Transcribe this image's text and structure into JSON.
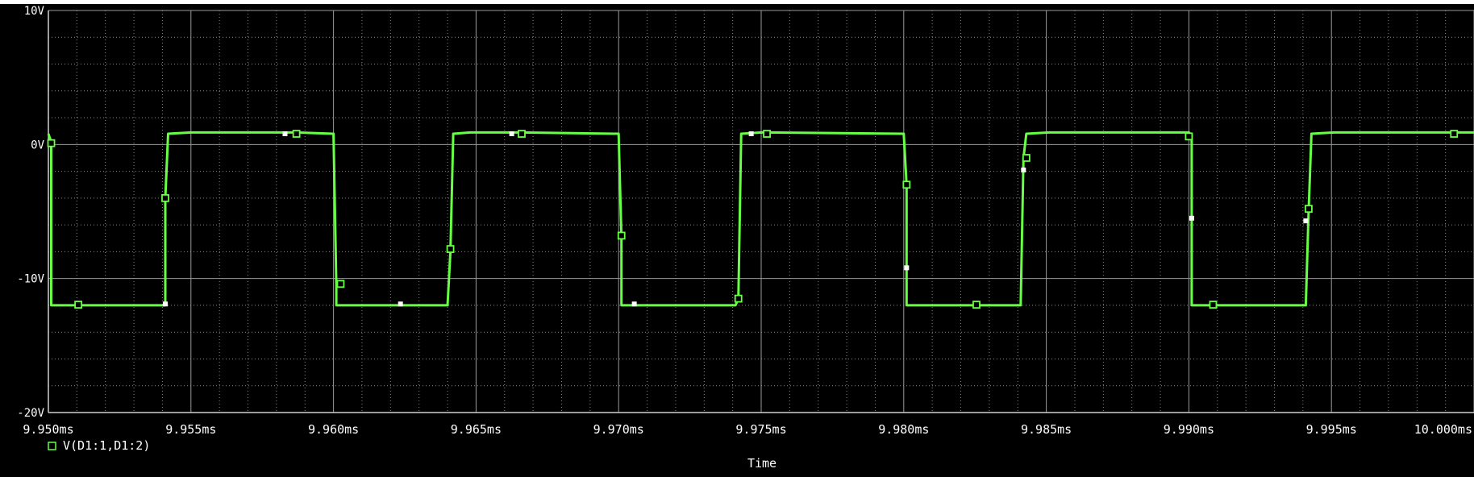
{
  "chart_data": {
    "type": "line",
    "title": "",
    "xlabel": "Time",
    "ylabel": "",
    "xlim": [
      9.95,
      10.0
    ],
    "ylim": [
      -20,
      10
    ],
    "x_ticks": [
      9.95,
      9.955,
      9.96,
      9.965,
      9.97,
      9.975,
      9.98,
      9.985,
      9.99,
      9.995,
      10.0
    ],
    "x_tick_labels": [
      "9.950ms",
      "9.955ms",
      "9.960ms",
      "9.965ms",
      "9.970ms",
      "9.975ms",
      "9.980ms",
      "9.985ms",
      "9.990ms",
      "9.995ms",
      "10.000ms"
    ],
    "y_ticks": [
      10,
      0,
      -10,
      -20
    ],
    "y_tick_labels": [
      "10V",
      "0V",
      "-10V",
      "-20V"
    ],
    "grid": true,
    "legend_position": "bottom-left",
    "series": [
      {
        "name": "V(D1:1,D1:2)",
        "color": "#66ff44",
        "marker": "square",
        "x": [
          9.95,
          9.9501,
          9.9501,
          9.95105,
          9.9541,
          9.9541,
          9.9542,
          9.955,
          9.9587,
          9.96,
          9.9601,
          9.9601,
          9.96025,
          9.964,
          9.9641,
          9.9642,
          9.9648,
          9.9666,
          9.97,
          9.9701,
          9.9701,
          9.97045,
          9.9741,
          9.9742,
          9.9743,
          9.975,
          9.9752,
          9.98,
          9.9801,
          9.9801,
          9.98255,
          9.9841,
          9.9842,
          9.9843,
          9.9851,
          9.99,
          9.9901,
          9.9901,
          9.99085,
          9.9941,
          9.9942,
          9.9943,
          9.9951,
          9.9993,
          10.0
        ],
        "y": [
          0.8,
          0.2,
          -12,
          -12,
          -12,
          -4,
          0.8,
          0.9,
          0.9,
          0.8,
          -10.5,
          -12,
          -12,
          -12,
          -8,
          0.8,
          0.9,
          0.9,
          0.8,
          -7,
          -12,
          -12,
          -12,
          -11.5,
          0.8,
          0.9,
          0.9,
          0.8,
          -3,
          -12,
          -12,
          -12,
          -1,
          0.8,
          0.9,
          0.9,
          0.7,
          -12,
          -12,
          -12,
          -5,
          0.8,
          0.9,
          0.9,
          0.9
        ]
      }
    ],
    "markers_square": [
      [
        9.9501,
        0.1
      ],
      [
        9.95105,
        -11.95
      ],
      [
        9.9541,
        -4
      ],
      [
        9.9587,
        0.8
      ],
      [
        9.96025,
        -10.4
      ],
      [
        9.9641,
        -7.8
      ],
      [
        9.9666,
        0.8
      ],
      [
        9.9701,
        -6.8
      ],
      [
        9.9742,
        -11.5
      ],
      [
        9.9752,
        0.8
      ],
      [
        9.9801,
        -3
      ],
      [
        9.98255,
        -11.95
      ],
      [
        9.9843,
        -1
      ],
      [
        9.99,
        0.6
      ],
      [
        9.99085,
        -11.95
      ],
      [
        9.9942,
        -4.8
      ],
      [
        9.9993,
        0.8
      ]
    ],
    "markers_dot": [
      [
        9.9541,
        -11.9
      ],
      [
        9.9583,
        0.8
      ],
      [
        9.96235,
        -11.9
      ],
      [
        9.96625,
        0.8
      ],
      [
        9.97055,
        -11.9
      ],
      [
        9.97465,
        0.8
      ],
      [
        9.9801,
        -9.2
      ],
      [
        9.9842,
        -1.9
      ],
      [
        9.9901,
        -5.5
      ],
      [
        9.9941,
        -5.7
      ]
    ]
  }
}
